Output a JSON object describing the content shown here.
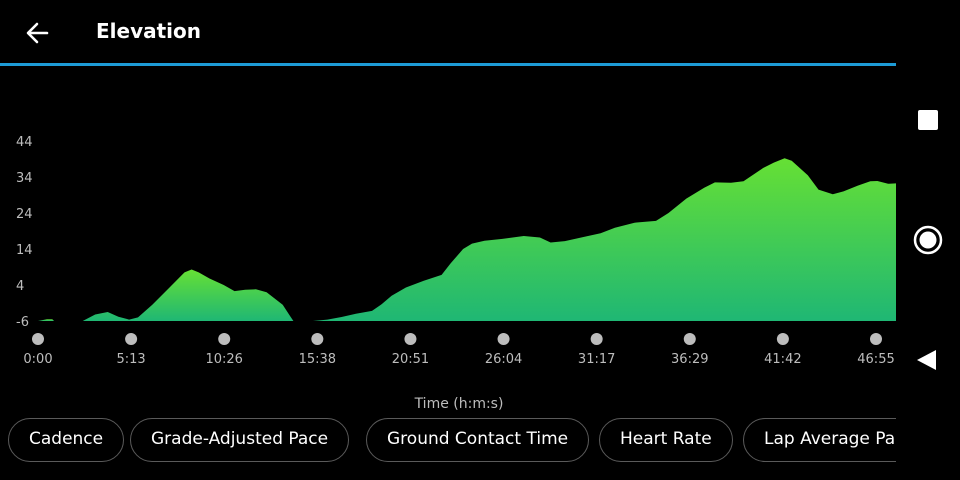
{
  "header": {
    "title": "Elevation",
    "back_icon": "arrow-left-icon"
  },
  "chart_data": {
    "type": "area",
    "title": "",
    "xlabel": "Time (h:m:s)",
    "ylabel": "",
    "y_ticks": [
      "44",
      "34",
      "24",
      "14",
      "4",
      "-6"
    ],
    "ylim": [
      -6,
      44
    ],
    "x_ticks": [
      "0:00",
      "5:13",
      "10:26",
      "15:38",
      "20:51",
      "26:04",
      "31:17",
      "36:29",
      "41:42",
      "46:55"
    ],
    "xlim_minutes": [
      0,
      46.92
    ],
    "series": [
      {
        "name": "",
        "segments": [
          [
            [
              0.0,
              -6
            ],
            [
              0.5,
              -5.5
            ],
            [
              0.8,
              -5.5
            ],
            [
              0.9,
              -6
            ]
          ],
          [
            [
              2.5,
              -6
            ],
            [
              3.2,
              -4.2
            ],
            [
              3.9,
              -3.5
            ],
            [
              4.5,
              -4.8
            ],
            [
              5.1,
              -5.6
            ],
            [
              5.6,
              -5.0
            ],
            [
              6.4,
              -1.5
            ],
            [
              7.3,
              3.0
            ],
            [
              8.2,
              7.5
            ],
            [
              8.6,
              8.3
            ],
            [
              9.0,
              7.5
            ],
            [
              9.6,
              5.8
            ],
            [
              10.4,
              4.0
            ],
            [
              11.0,
              2.3
            ],
            [
              11.6,
              2.7
            ],
            [
              12.2,
              2.8
            ],
            [
              12.8,
              2.0
            ],
            [
              13.7,
              -1.5
            ],
            [
              14.1,
              -4.5
            ],
            [
              14.3,
              -6
            ]
          ],
          [
            [
              15.4,
              -6
            ],
            [
              16.2,
              -5.6
            ],
            [
              17.0,
              -4.9
            ],
            [
              17.8,
              -4.0
            ],
            [
              18.7,
              -3.2
            ],
            [
              19.2,
              -1.5
            ],
            [
              19.8,
              1.0
            ],
            [
              20.6,
              3.3
            ],
            [
              21.6,
              5.2
            ],
            [
              22.6,
              6.8
            ],
            [
              23.1,
              10.0
            ],
            [
              23.8,
              14.0
            ],
            [
              24.3,
              15.5
            ],
            [
              25.0,
              16.3
            ],
            [
              26.0,
              16.8
            ],
            [
              27.2,
              17.6
            ],
            [
              28.1,
              17.2
            ],
            [
              28.7,
              15.8
            ],
            [
              29.5,
              16.2
            ],
            [
              30.7,
              17.5
            ],
            [
              31.5,
              18.4
            ],
            [
              32.3,
              19.9
            ],
            [
              33.4,
              21.3
            ],
            [
              34.6,
              21.8
            ],
            [
              35.3,
              24.0
            ],
            [
              36.3,
              28.0
            ],
            [
              37.3,
              31.0
            ],
            [
              37.9,
              32.5
            ],
            [
              38.8,
              32.4
            ],
            [
              39.5,
              32.8
            ],
            [
              40.0,
              34.5
            ],
            [
              40.6,
              36.5
            ],
            [
              41.2,
              38.0
            ],
            [
              41.8,
              39.2
            ],
            [
              42.2,
              38.5
            ],
            [
              43.1,
              34.5
            ],
            [
              43.7,
              30.5
            ],
            [
              44.5,
              29.2
            ],
            [
              45.1,
              30.0
            ],
            [
              45.9,
              31.6
            ],
            [
              46.6,
              32.8
            ],
            [
              47.0,
              32.9
            ],
            [
              47.6,
              32.1
            ],
            [
              48.3,
              32.3
            ],
            [
              48.7,
              33.1
            ],
            [
              49.3,
              34.5
            ],
            [
              49.8,
              35.5
            ],
            [
              49.9,
              -6
            ]
          ]
        ]
      }
    ]
  },
  "chips": [
    {
      "label": "Cadence"
    },
    {
      "label": "Grade-Adjusted Pace"
    },
    {
      "label": "Ground Contact Time"
    },
    {
      "label": "Heart Rate"
    },
    {
      "label": "Lap Average Pace"
    }
  ],
  "navbar": {
    "recents_icon": "square-icon",
    "home_icon": "circle-home-icon",
    "back_icon": "triangle-back-icon"
  },
  "colors": {
    "background": "#000000",
    "accent_line": "#1d9bd6",
    "area_top": "#66e034",
    "area_bottom": "#1fb774"
  }
}
